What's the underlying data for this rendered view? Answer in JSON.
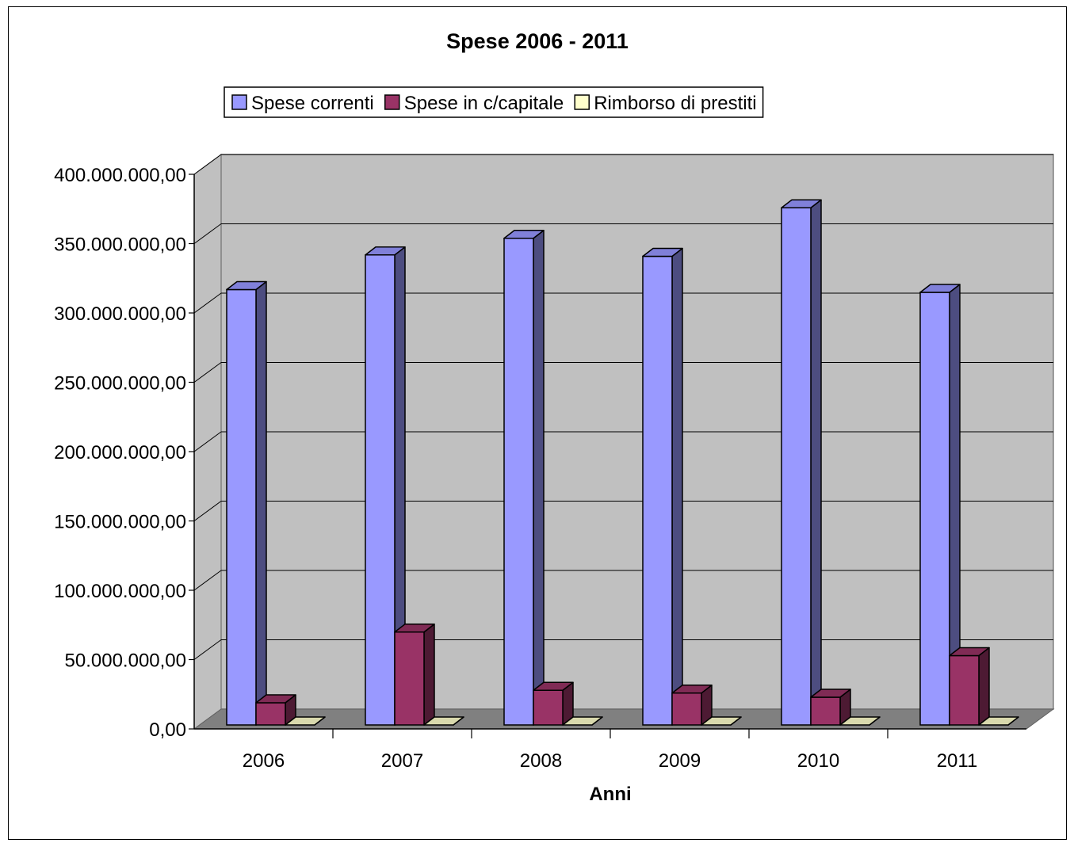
{
  "chart_data": {
    "type": "bar",
    "title": "Spese 2006 - 2011",
    "xlabel": "Anni",
    "ylabel": "",
    "categories": [
      "2006",
      "2007",
      "2008",
      "2009",
      "2010",
      "2011"
    ],
    "series": [
      {
        "name": "Spese correnti",
        "color": "#9999FF",
        "side_color": "#4D4D80",
        "top_color": "#8080D9",
        "values": [
          314000000,
          339000000,
          351000000,
          338000000,
          373000000,
          312000000
        ]
      },
      {
        "name": "Spese in c/capitale",
        "color": "#993366",
        "side_color": "#4D1A33",
        "top_color": "#802B55",
        "values": [
          16000000,
          67000000,
          25000000,
          23000000,
          20000000,
          50000000
        ]
      },
      {
        "name": "Rimborso di prestiti",
        "color": "#FFFFCC",
        "side_color": "#808066",
        "top_color": "#D9D9AD",
        "values": [
          0,
          0,
          0,
          0,
          0,
          0
        ]
      }
    ],
    "ylim": [
      0,
      400000000
    ],
    "yticks": [
      "0,00",
      "50.000.000,00",
      "100.000.000,00",
      "150.000.000,00",
      "200.000.000,00",
      "250.000.000,00",
      "300.000.000,00",
      "350.000.000,00",
      "400.000.000,00"
    ],
    "grid": true,
    "legend_position": "top",
    "wall_color": "#C0C0C0",
    "floor_color": "#808080"
  }
}
